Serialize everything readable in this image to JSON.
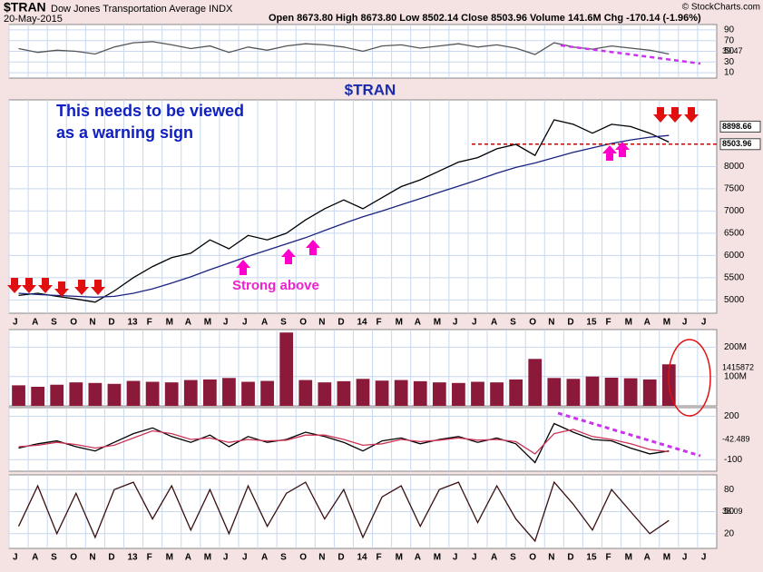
{
  "header": {
    "symbol": "$TRAN",
    "name": "Dow Jones Transportation Average INDX",
    "date": "20-May-2015",
    "quote": "Open 8673.80  High 8673.80  Low 8502.14  Close 8503.96  Volume 141.6M  Chg -170.14 (-1.96%)",
    "credit": "© StockCharts.com"
  },
  "chart_data": [
    {
      "type": "line",
      "ylim": [
        0,
        100
      ],
      "yticks": [
        10,
        30,
        50,
        70,
        90
      ],
      "side_label": "39.47",
      "series": [
        {
          "name": "RSI",
          "color": "#555555",
          "values": [
            55,
            48,
            52,
            50,
            45,
            58,
            66,
            68,
            62,
            55,
            60,
            48,
            58,
            52,
            60,
            64,
            62,
            58,
            50,
            60,
            62,
            56,
            60,
            64,
            58,
            62,
            56,
            44,
            66,
            58,
            54,
            60,
            56,
            52,
            45,
            null,
            null
          ]
        }
      ]
    },
    {
      "type": "line",
      "title": "$TRAN",
      "ylim": [
        4700,
        9500
      ],
      "yticks": [
        5000,
        5500,
        6000,
        6500,
        7000,
        7500,
        8000
      ],
      "categories": [
        "J",
        "A",
        "S",
        "O",
        "N",
        "D",
        "13",
        "F",
        "M",
        "A",
        "M",
        "J",
        "J",
        "A",
        "S",
        "O",
        "N",
        "D",
        "14",
        "F",
        "M",
        "A",
        "M",
        "J",
        "J",
        "A",
        "S",
        "O",
        "N",
        "D",
        "15",
        "F",
        "M",
        "A",
        "M",
        "J",
        "J"
      ],
      "annotations": [
        "This needs to be viewed",
        "as a warning sign",
        "Strong above"
      ],
      "price_labels": [
        8898.66,
        8503.96
      ],
      "series": [
        {
          "name": "Price",
          "color": "#000000",
          "values": [
            5100,
            5150,
            5080,
            5020,
            4950,
            5200,
            5500,
            5750,
            5950,
            6050,
            6350,
            6150,
            6450,
            6350,
            6500,
            6800,
            7050,
            7250,
            7050,
            7300,
            7550,
            7700,
            7900,
            8100,
            8200,
            8400,
            8500,
            8250,
            9050,
            8950,
            8750,
            8950,
            8900,
            8750,
            8550,
            null,
            null
          ]
        },
        {
          "name": "MA",
          "color": "#1a237e",
          "values": [
            5150,
            5120,
            5100,
            5080,
            5060,
            5080,
            5150,
            5250,
            5380,
            5520,
            5680,
            5830,
            5980,
            6120,
            6260,
            6400,
            6560,
            6720,
            6870,
            7000,
            7140,
            7280,
            7420,
            7560,
            7700,
            7850,
            7980,
            8080,
            8200,
            8320,
            8420,
            8520,
            8600,
            8660,
            8700,
            null,
            null
          ]
        }
      ]
    },
    {
      "type": "bar",
      "ylim": [
        0,
        260000000
      ],
      "yticks": [
        {
          "value": 100000000,
          "label": "100M"
        },
        {
          "value": 200000000,
          "label": "200M"
        }
      ],
      "side_label": "1415872",
      "series": [
        {
          "name": "Volume",
          "color": "#8b1a3a",
          "values": [
            70000000,
            65000000,
            72000000,
            80000000,
            78000000,
            75000000,
            85000000,
            82000000,
            80000000,
            88000000,
            90000000,
            95000000,
            82000000,
            85000000,
            250000000,
            88000000,
            80000000,
            84000000,
            92000000,
            86000000,
            88000000,
            84000000,
            80000000,
            78000000,
            82000000,
            80000000,
            90000000,
            160000000,
            95000000,
            92000000,
            100000000,
            96000000,
            94000000,
            90000000,
            141600000,
            null,
            null
          ]
        }
      ]
    },
    {
      "type": "line",
      "ylim": [
        -180,
        260
      ],
      "yticks": [
        200,
        -100
      ],
      "side_label": "-42.489",
      "series": [
        {
          "name": "MACD",
          "color": "#000000",
          "values": [
            -20,
            10,
            30,
            -10,
            -40,
            20,
            80,
            120,
            60,
            20,
            70,
            -10,
            60,
            20,
            40,
            90,
            60,
            20,
            -40,
            30,
            50,
            10,
            40,
            60,
            20,
            50,
            10,
            -120,
            150,
            90,
            40,
            30,
            -20,
            -60,
            -40,
            null,
            null
          ]
        },
        {
          "name": "Signal",
          "color": "#cc3355",
          "values": [
            -10,
            0,
            20,
            5,
            -20,
            0,
            50,
            100,
            80,
            40,
            50,
            20,
            40,
            30,
            35,
            70,
            70,
            40,
            0,
            10,
            40,
            25,
            35,
            50,
            35,
            40,
            25,
            -60,
            80,
            110,
            60,
            40,
            10,
            -30,
            -45,
            null,
            null
          ]
        }
      ]
    },
    {
      "type": "line",
      "ylim": [
        0,
        100
      ],
      "yticks": [
        20,
        50,
        80
      ],
      "side_label": "38.09",
      "series": [
        {
          "name": "Stoch",
          "color": "#3a1010",
          "values": [
            30,
            85,
            20,
            75,
            15,
            80,
            90,
            40,
            85,
            25,
            80,
            20,
            85,
            30,
            75,
            90,
            40,
            80,
            15,
            70,
            85,
            30,
            80,
            90,
            35,
            85,
            40,
            10,
            90,
            60,
            25,
            80,
            50,
            20,
            38,
            null,
            null
          ]
        }
      ]
    }
  ]
}
